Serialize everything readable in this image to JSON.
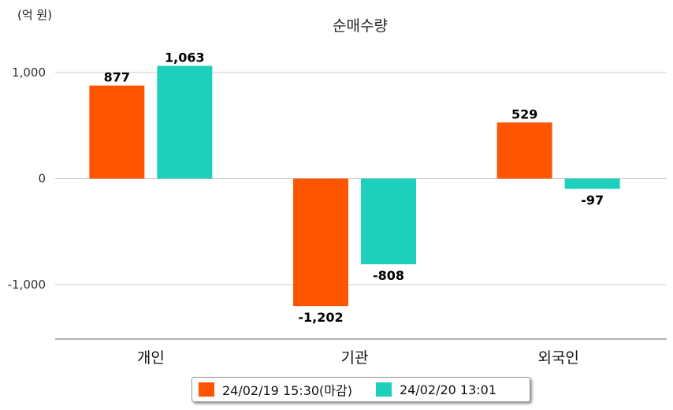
{
  "chart_data": {
    "type": "bar",
    "title": "순매수량",
    "unit_label": "(억 원)",
    "categories": [
      "개인",
      "기관",
      "외국인"
    ],
    "series": [
      {
        "name": "24/02/19 15:30(마감)",
        "color": "#ff5500",
        "values": [
          877,
          -1202,
          529
        ]
      },
      {
        "name": "24/02/20 13:01",
        "color": "#1ecfbc",
        "values": [
          1063,
          -808,
          -97
        ]
      }
    ],
    "data_labels": [
      [
        "877",
        "-1,202",
        "529"
      ],
      [
        "1,063",
        "-808",
        "-97"
      ]
    ],
    "yticks": [
      1000,
      0,
      -1000
    ],
    "ytick_labels": [
      "1,000",
      "0",
      "-1,000"
    ],
    "ylim": [
      -1500,
      1000
    ],
    "grid": true,
    "legend_position": "bottom"
  }
}
